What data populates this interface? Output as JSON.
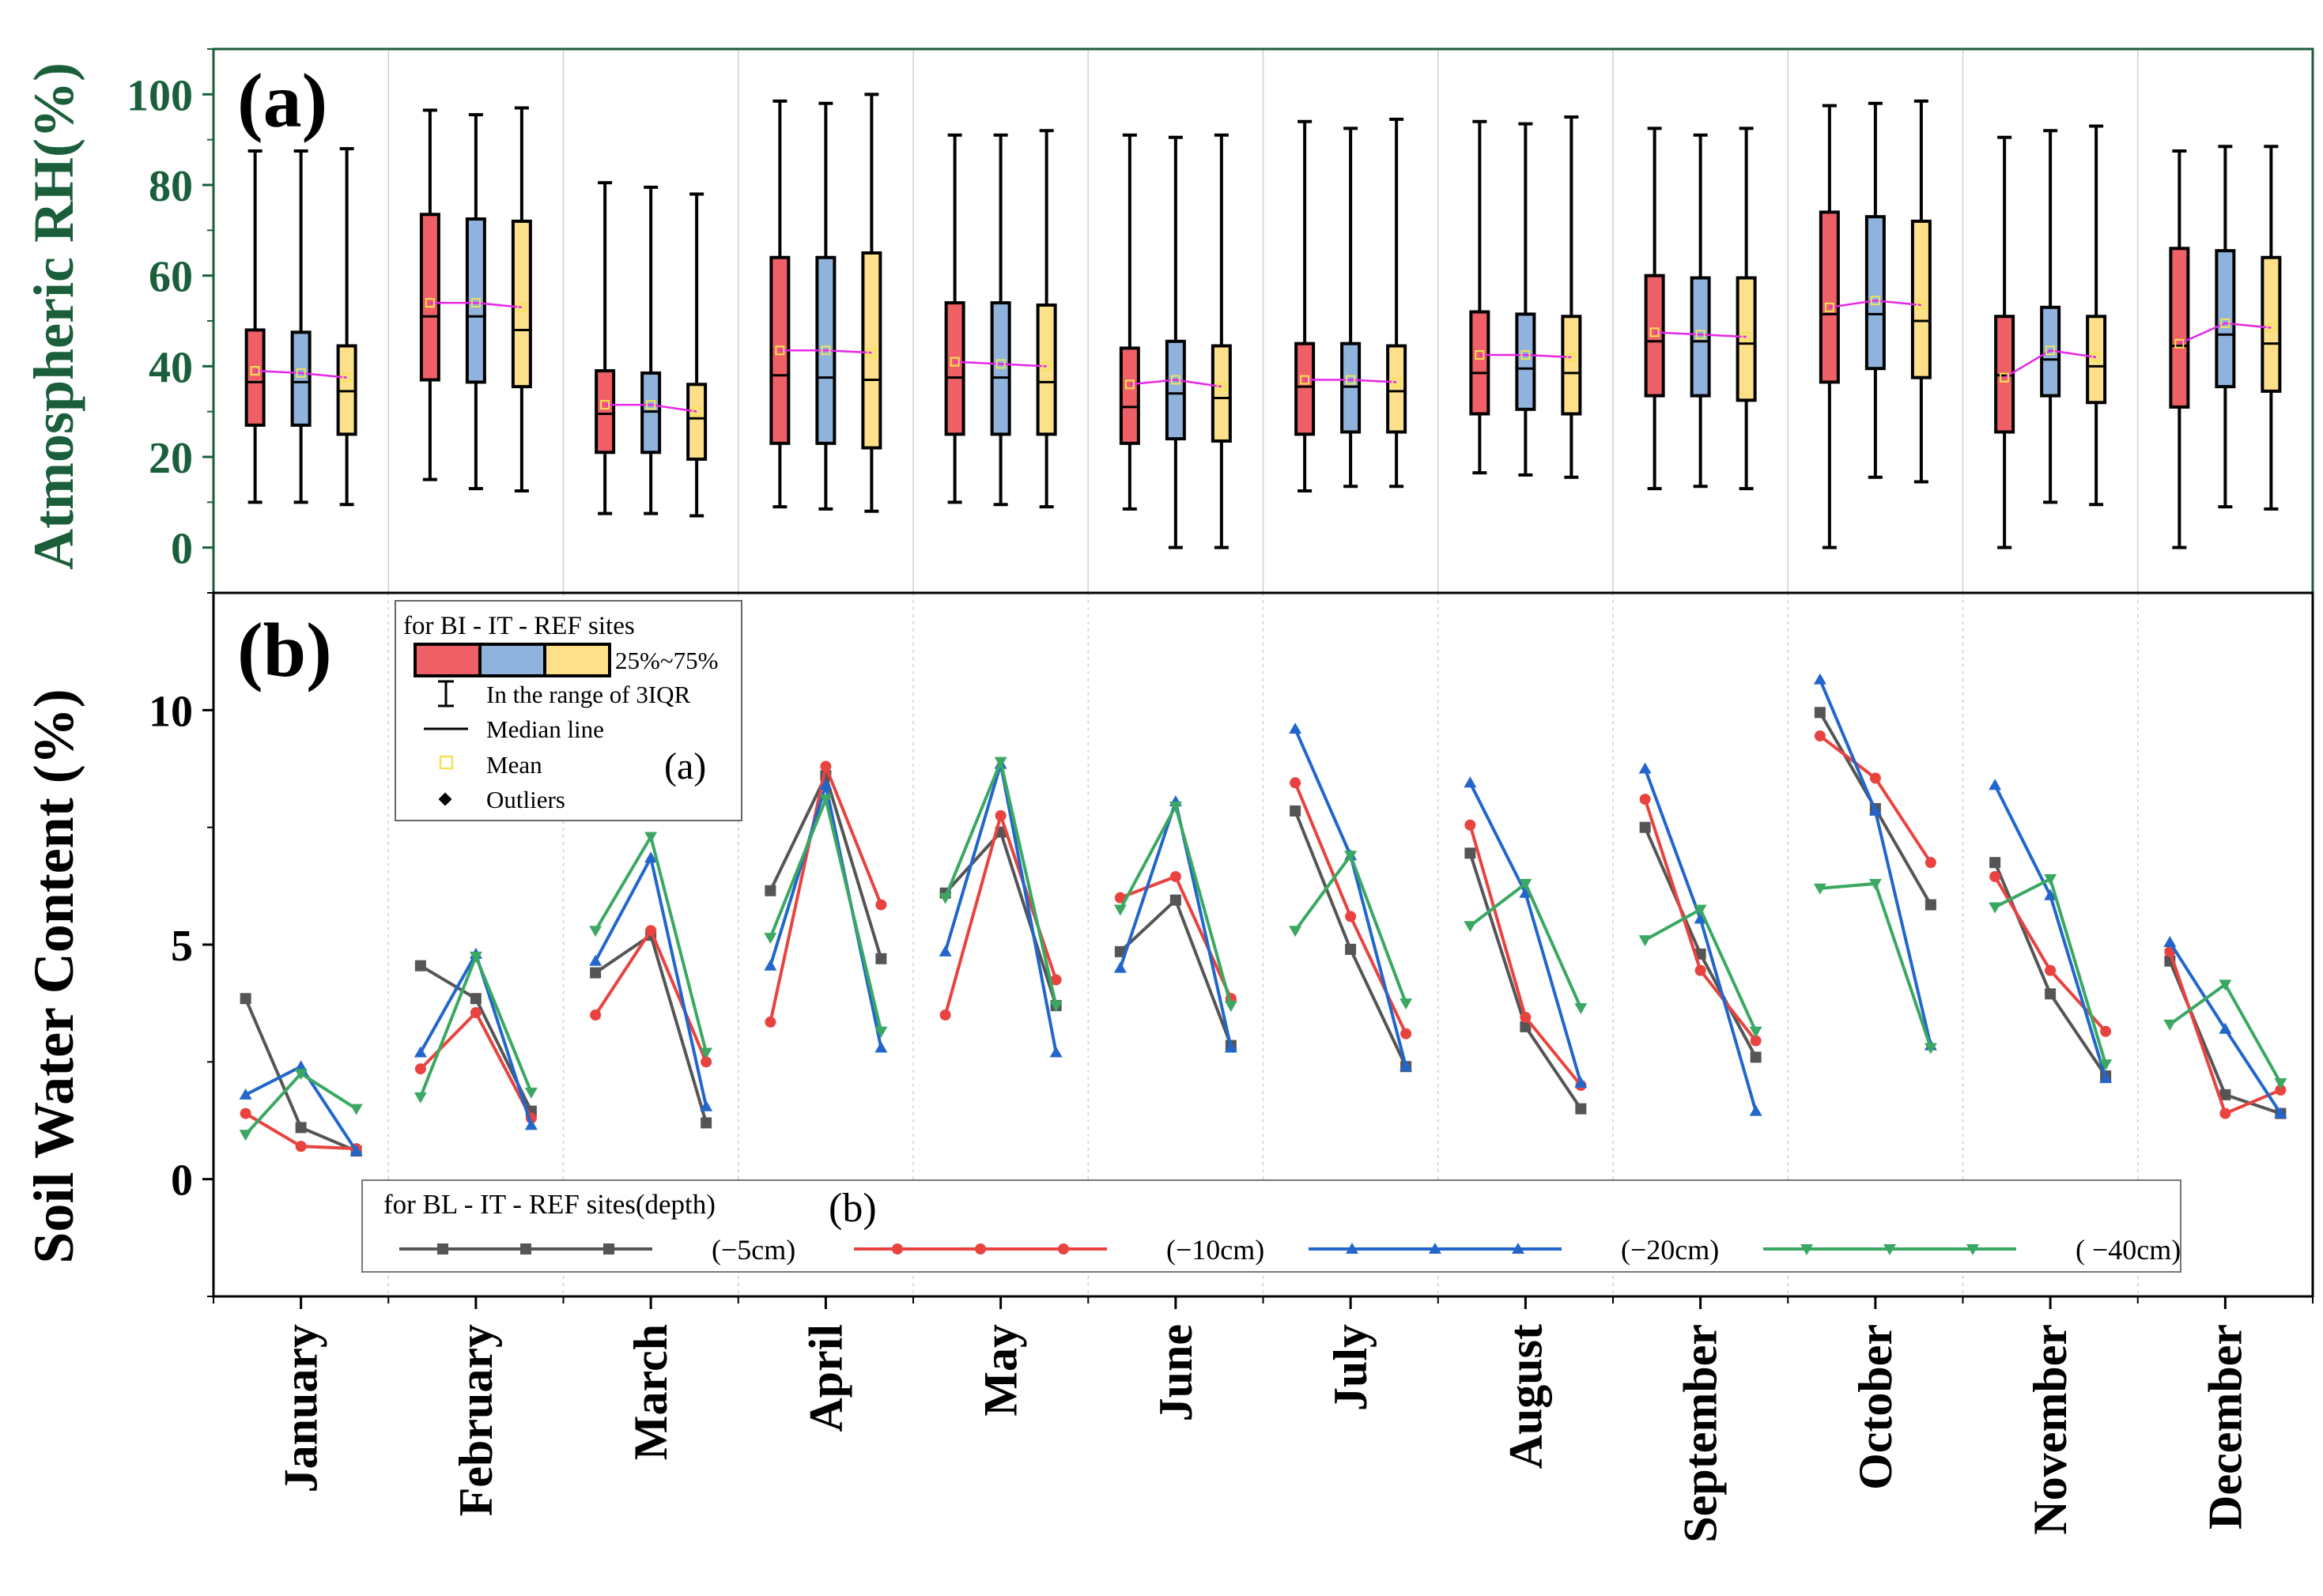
{
  "chart_data": [
    {
      "type": "box",
      "panel_label": "(a)",
      "ylabel": "Atmospheric RH(%)",
      "ylim": [
        -10,
        110
      ],
      "yticks": [
        0,
        20,
        40,
        60,
        80,
        100
      ],
      "categories": [
        "January",
        "February",
        "March",
        "April",
        "May",
        "June",
        "July",
        "August",
        "September",
        "October",
        "November",
        "December"
      ],
      "colors": {
        "BI": "#ef5f66",
        "IT": "#8fb3dc",
        "REF": "#fde089",
        "mean_line": "#e626e6"
      },
      "series": [
        {
          "site": "BI",
          "stats": [
            {
              "min": 10,
              "q1": 27,
              "median": 36.5,
              "q3": 48,
              "max": 87.5,
              "mean": 39
            },
            {
              "min": 15,
              "q1": 37,
              "median": 51,
              "q3": 73.5,
              "max": 96.5,
              "mean": 54
            },
            {
              "min": 7.5,
              "q1": 21,
              "median": 29.5,
              "q3": 39,
              "max": 80.5,
              "mean": 31.5
            },
            {
              "min": 9,
              "q1": 23,
              "median": 38,
              "q3": 64,
              "max": 98.5,
              "mean": 43.5
            },
            {
              "min": 10,
              "q1": 25,
              "median": 37.5,
              "q3": 54,
              "max": 91,
              "mean": 41
            },
            {
              "min": 8.5,
              "q1": 23,
              "median": 31,
              "q3": 44,
              "max": 91,
              "mean": 36
            },
            {
              "min": 12.5,
              "q1": 25,
              "median": 35.5,
              "q3": 45,
              "max": 94,
              "mean": 37
            },
            {
              "min": 16.5,
              "q1": 29.5,
              "median": 38.5,
              "q3": 52,
              "max": 94,
              "mean": 42.5
            },
            {
              "min": 13,
              "q1": 33.5,
              "median": 45.5,
              "q3": 60,
              "max": 92.5,
              "mean": 47.5
            },
            {
              "min": 0,
              "q1": 36.5,
              "median": 51.5,
              "q3": 74,
              "max": 97.5,
              "mean": 53
            },
            {
              "min": 0,
              "q1": 25.5,
              "median": 38,
              "q3": 51,
              "max": 90.5,
              "mean": 37.5
            },
            {
              "min": 0,
              "q1": 31,
              "median": 44.5,
              "q3": 66,
              "max": 87.5,
              "mean": 45
            }
          ]
        },
        {
          "site": "IT",
          "stats": [
            {
              "min": 10,
              "q1": 27,
              "median": 36.5,
              "q3": 47.5,
              "max": 87.5,
              "mean": 38.5
            },
            {
              "min": 13,
              "q1": 36.5,
              "median": 51,
              "q3": 72.5,
              "max": 95.5,
              "mean": 54
            },
            {
              "min": 7.5,
              "q1": 21,
              "median": 30,
              "q3": 38.5,
              "max": 79.5,
              "mean": 31.5
            },
            {
              "min": 8.5,
              "q1": 23,
              "median": 37.5,
              "q3": 64,
              "max": 98,
              "mean": 43.5
            },
            {
              "min": 9.5,
              "q1": 25,
              "median": 37.5,
              "q3": 54,
              "max": 91,
              "mean": 40.5
            },
            {
              "min": 0,
              "q1": 24,
              "median": 34,
              "q3": 45.5,
              "max": 90.5,
              "mean": 37
            },
            {
              "min": 13.5,
              "q1": 25.5,
              "median": 35.5,
              "q3": 45,
              "max": 92.5,
              "mean": 37
            },
            {
              "min": 16,
              "q1": 30.5,
              "median": 39.5,
              "q3": 51.5,
              "max": 93.5,
              "mean": 42.5
            },
            {
              "min": 13.5,
              "q1": 33.5,
              "median": 45.5,
              "q3": 59.5,
              "max": 91,
              "mean": 47
            },
            {
              "min": 15.5,
              "q1": 39.5,
              "median": 51.5,
              "q3": 73,
              "max": 98,
              "mean": 54.5
            },
            {
              "min": 10,
              "q1": 33.5,
              "median": 41.5,
              "q3": 53,
              "max": 92,
              "mean": 43.5
            },
            {
              "min": 9,
              "q1": 35.5,
              "median": 47,
              "q3": 65.5,
              "max": 88.5,
              "mean": 49.5
            }
          ]
        },
        {
          "site": "REF",
          "stats": [
            {
              "min": 9.5,
              "q1": 25,
              "median": 34.5,
              "q3": 44.5,
              "max": 88,
              "mean": 37.5
            },
            {
              "min": 12.5,
              "q1": 35.5,
              "median": 48,
              "q3": 72,
              "max": 97,
              "mean": 53
            },
            {
              "min": 7,
              "q1": 19.5,
              "median": 28.5,
              "q3": 36,
              "max": 78,
              "mean": 30
            },
            {
              "min": 8,
              "q1": 22,
              "median": 37,
              "q3": 65,
              "max": 100,
              "mean": 43
            },
            {
              "min": 9,
              "q1": 25,
              "median": 36.5,
              "q3": 53.5,
              "max": 92,
              "mean": 40
            },
            {
              "min": 0,
              "q1": 23.5,
              "median": 33,
              "q3": 44.5,
              "max": 91,
              "mean": 35.5
            },
            {
              "min": 13.5,
              "q1": 25.5,
              "median": 34.5,
              "q3": 44.5,
              "max": 94.5,
              "mean": 36.5
            },
            {
              "min": 15.5,
              "q1": 29.5,
              "median": 38.5,
              "q3": 51,
              "max": 95,
              "mean": 42
            },
            {
              "min": 13,
              "q1": 32.5,
              "median": 45,
              "q3": 59.5,
              "max": 92.5,
              "mean": 46.5
            },
            {
              "min": 14.5,
              "q1": 37.5,
              "median": 50,
              "q3": 72,
              "max": 98.5,
              "mean": 53.5
            },
            {
              "min": 9.5,
              "q1": 32,
              "median": 40,
              "q3": 51,
              "max": 93,
              "mean": 42
            },
            {
              "min": 8.5,
              "q1": 34.5,
              "median": 45,
              "q3": 64,
              "max": 88.5,
              "mean": 48.5
            }
          ]
        }
      ],
      "legend": {
        "title": "for BI  -  IT  -  REF sites",
        "box_label": "25%~75%",
        "whisker_label": "In the range of 3IQR",
        "median_label": "Median line",
        "mean_label": "Mean",
        "outlier_label": "Outliers",
        "panel_ref": "(a)"
      }
    },
    {
      "type": "line",
      "panel_label": "(b)",
      "ylabel": "Soil Water Content (%)",
      "ylim": [
        -2.5,
        12.5
      ],
      "yticks": [
        0,
        5,
        10
      ],
      "categories": [
        "January",
        "February",
        "March",
        "April",
        "May",
        "June",
        "July",
        "August",
        "September",
        "October",
        "November",
        "December"
      ],
      "site_order": [
        "BL",
        "IT",
        "REF"
      ],
      "series": [
        {
          "name": "(−5cm)",
          "color": "#555555",
          "marker": "square",
          "values": [
            [
              3.85,
              1.1,
              0.6
            ],
            [
              4.55,
              3.85,
              1.45
            ],
            [
              4.4,
              5.2,
              1.2
            ],
            [
              6.15,
              8.6,
              4.7
            ],
            [
              6.1,
              7.4,
              3.7
            ],
            [
              4.85,
              5.95,
              2.85
            ],
            [
              7.85,
              4.9,
              2.4
            ],
            [
              6.95,
              3.25,
              1.5
            ],
            [
              7.5,
              4.8,
              2.6
            ],
            [
              9.95,
              7.9,
              5.85
            ],
            [
              6.75,
              3.95,
              2.2
            ],
            [
              4.65,
              1.8,
              1.4
            ]
          ]
        },
        {
          "name": "(−10cm)",
          "color": "#e8433f",
          "marker": "circle",
          "values": [
            [
              1.4,
              0.7,
              0.65
            ],
            [
              2.35,
              3.55,
              1.3
            ],
            [
              3.5,
              5.3,
              2.5
            ],
            [
              3.35,
              8.8,
              5.85
            ],
            [
              3.5,
              7.75,
              4.25
            ],
            [
              6.0,
              6.45,
              3.85
            ],
            [
              8.45,
              5.6,
              3.1
            ],
            [
              7.55,
              3.45,
              2.0
            ],
            [
              8.1,
              4.45,
              2.95
            ],
            [
              9.45,
              8.55,
              6.75
            ],
            [
              6.45,
              4.45,
              3.15
            ],
            [
              4.85,
              1.4,
              1.9
            ]
          ]
        },
        {
          "name": "(−20cm)",
          "color": "#2266cc",
          "marker": "triangle-up",
          "values": [
            [
              1.8,
              2.4,
              0.6
            ],
            [
              2.7,
              4.8,
              1.15
            ],
            [
              4.65,
              6.85,
              1.55
            ],
            [
              4.55,
              8.4,
              2.8
            ],
            [
              4.85,
              8.85,
              2.7
            ],
            [
              4.5,
              8.05,
              2.8
            ],
            [
              9.6,
              6.9,
              2.4
            ],
            [
              8.45,
              6.1,
              2.05
            ],
            [
              8.75,
              5.55,
              1.45
            ],
            [
              10.65,
              7.85,
              2.85
            ],
            [
              8.4,
              6.05,
              2.15
            ],
            [
              5.05,
              3.2,
              1.4
            ]
          ]
        },
        {
          "name": "( −40cm)",
          "color": "#3aa862",
          "marker": "triangle-down",
          "values": [
            [
              0.95,
              2.25,
              1.5
            ],
            [
              1.75,
              4.75,
              1.85
            ],
            [
              5.3,
              7.3,
              2.7
            ],
            [
              5.15,
              8.1,
              3.15
            ],
            [
              6.0,
              8.9,
              3.7
            ],
            [
              5.75,
              7.95,
              3.7
            ],
            [
              5.3,
              6.9,
              3.75
            ],
            [
              5.4,
              6.3,
              3.65
            ],
            [
              5.1,
              5.75,
              3.15
            ],
            [
              6.2,
              6.3,
              2.8
            ],
            [
              5.8,
              6.4,
              2.45
            ],
            [
              3.3,
              4.15,
              2.05
            ]
          ]
        }
      ],
      "legend": {
        "title": "for BL - IT - REF sites(depth)",
        "panel_ref": "(b)"
      }
    }
  ]
}
